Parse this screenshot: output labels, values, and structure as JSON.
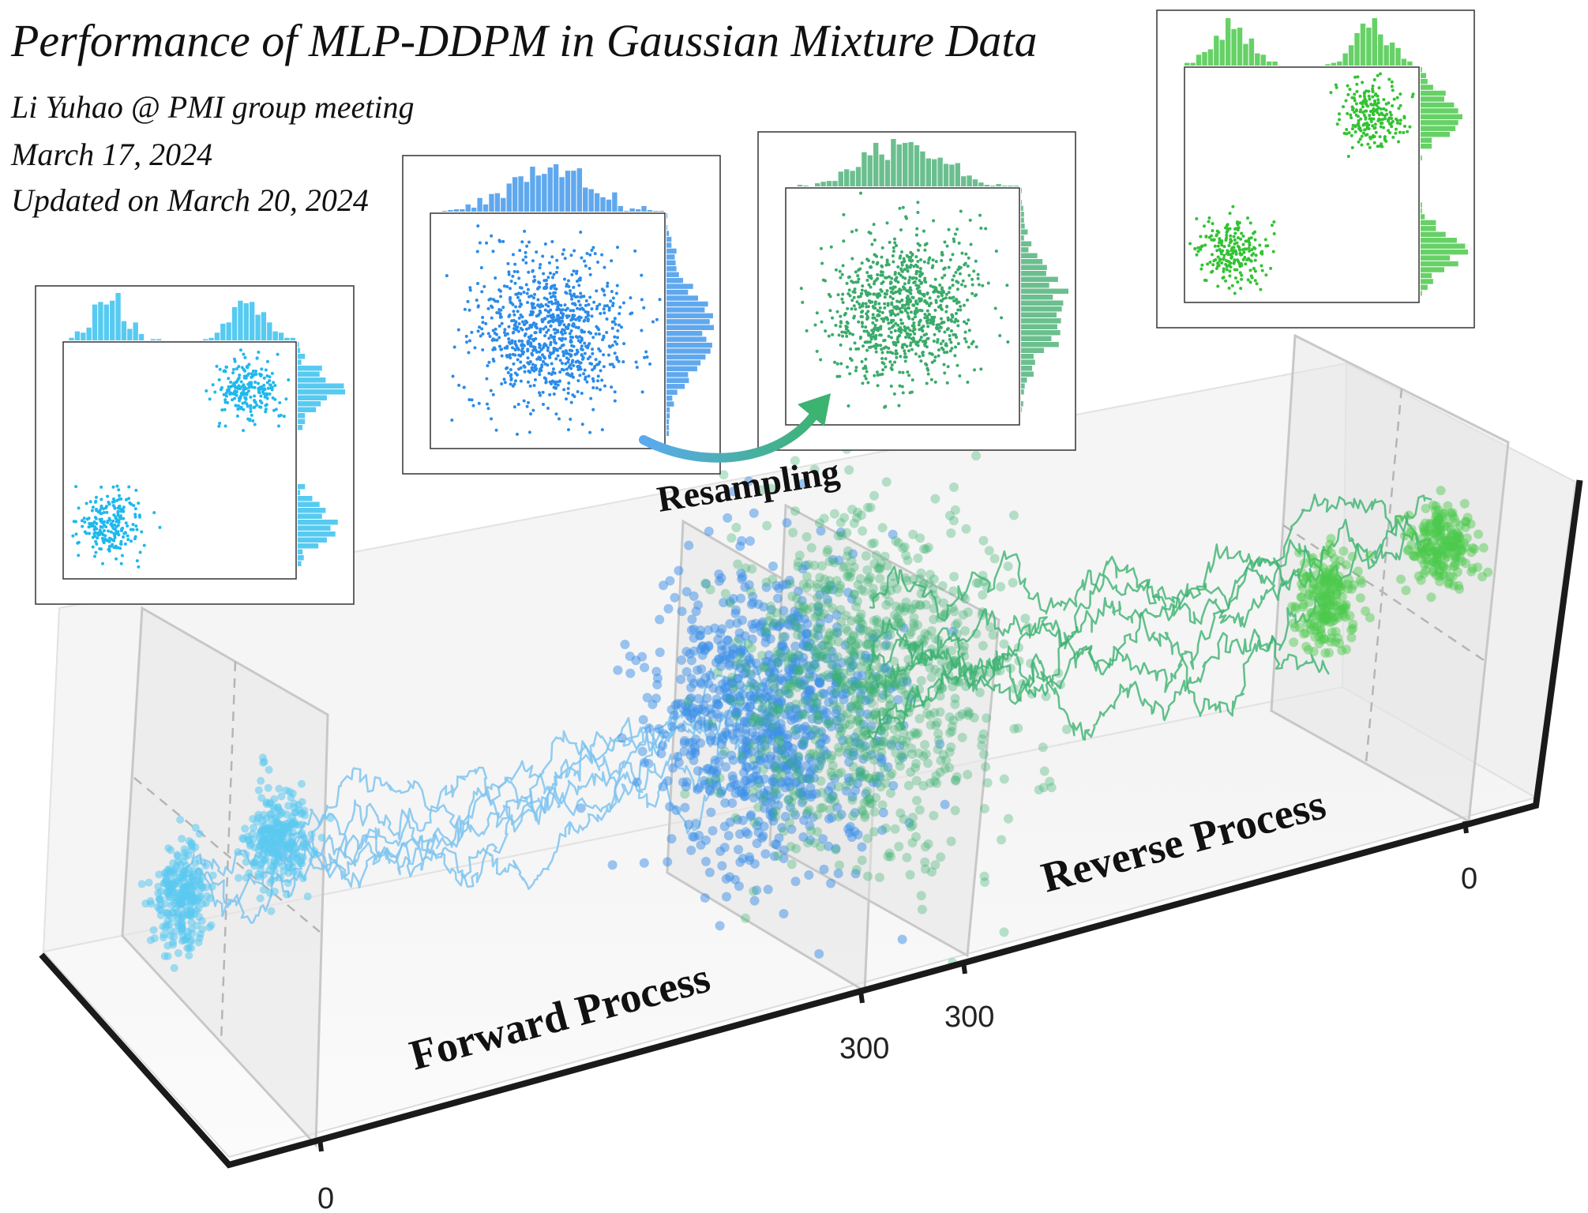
{
  "header": {
    "title": "Performance of MLP-DDPM in Gaussian Mixture Data",
    "author": "Li Yuhao @ PMI group meeting",
    "date": "March 17, 2024",
    "updated": "Updated on March 20, 2024"
  },
  "labels": {
    "resampling": "Resampling",
    "forward": "Forward Process",
    "reverse": "Reverse Process"
  },
  "ticks": {
    "t0_forward": "0",
    "t300_forward": "300",
    "t300_reverse": "300",
    "t0_reverse": "0"
  },
  "colors": {
    "forward_light": "#5bc8f0",
    "forward_mid": "#7fc4f0",
    "noise_blue": "#3d8fe8",
    "reverse_green": "#3cb371",
    "data_green": "#4cc94c",
    "arrow_start": "#5aaaf0",
    "arrow_end": "#3cb371",
    "axis": "#1a1a1a"
  },
  "insets": [
    {
      "name": "data-start",
      "kind": "mixture",
      "color": "#1fb8ec"
    },
    {
      "name": "noise-forward",
      "kind": "gaussian",
      "color": "#2b8be8"
    },
    {
      "name": "noise-resampled",
      "kind": "gaussian",
      "color": "#3aaa6a"
    },
    {
      "name": "data-generated",
      "kind": "mixture",
      "color": "#33c233"
    }
  ]
}
